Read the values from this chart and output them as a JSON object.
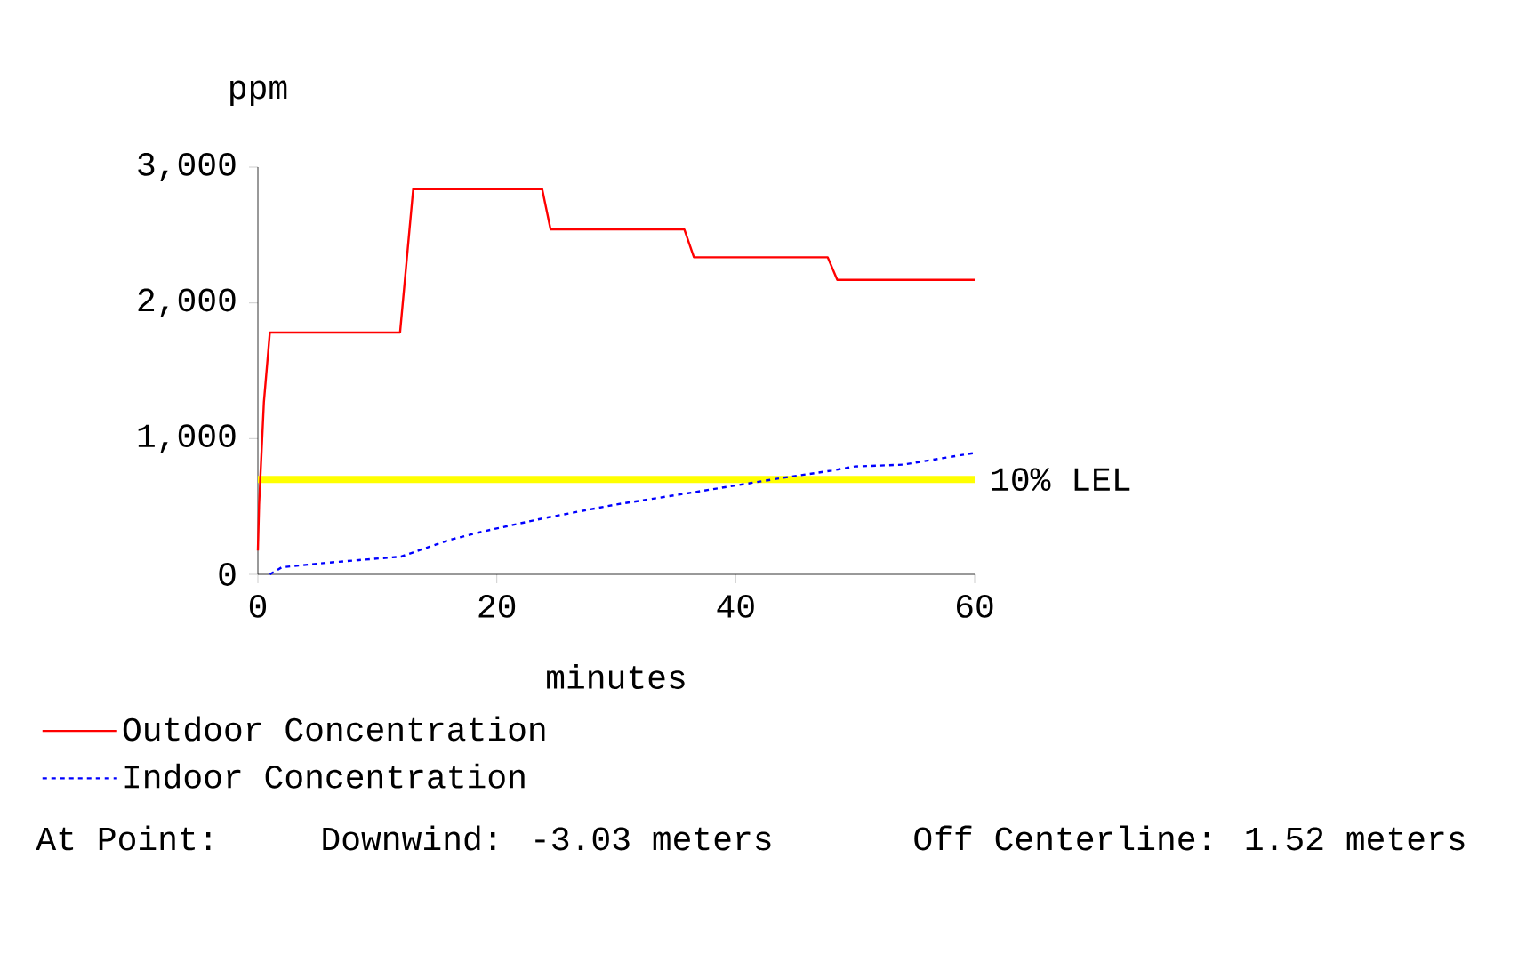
{
  "chart_data": {
    "type": "line",
    "xlabel": "minutes",
    "ylabel": "ppm",
    "xlim": [
      0,
      60
    ],
    "ylim": [
      0,
      3000
    ],
    "xticks": [
      0,
      20,
      40,
      60
    ],
    "yticks": [
      {
        "value": 0,
        "label": "0"
      },
      {
        "value": 1000,
        "label": "1,000"
      },
      {
        "value": 2000,
        "label": "2,000"
      },
      {
        "value": 3000,
        "label": "3,000"
      }
    ],
    "grid": false,
    "legend": "bottom left",
    "marker": "none",
    "series": [
      {
        "name": "Outdoor Concentration",
        "color": "#ff0000",
        "line_style": "solid",
        "x": [
          0,
          0.1,
          0.5,
          1,
          11.9,
          13,
          23.8,
          24.5,
          35.7,
          36.5,
          47.7,
          48.5,
          60
        ],
        "values": [
          175,
          515,
          1266,
          1782,
          1782,
          2838,
          2838,
          2541,
          2541,
          2336,
          2336,
          2170,
          2170
        ]
      },
      {
        "name": "Indoor Concentration",
        "color": "#0000ff",
        "line_style": "dotted",
        "x": [
          1,
          2,
          6,
          12,
          13,
          16,
          19,
          24,
          30,
          36,
          40,
          44,
          48,
          50,
          54,
          60
        ],
        "values": [
          0,
          52,
          87,
          131,
          162,
          253,
          319,
          415,
          515,
          598,
          655,
          712,
          764,
          795,
          808,
          895
        ]
      }
    ],
    "ref_lines": [
      {
        "axis": "y",
        "value": 700,
        "label": "10% LEL",
        "color": "#ffff00"
      }
    ],
    "annotations": [
      "At Point:",
      "Downwind: -3.03 meters",
      "Off Centerline: 1.52 meters"
    ]
  }
}
